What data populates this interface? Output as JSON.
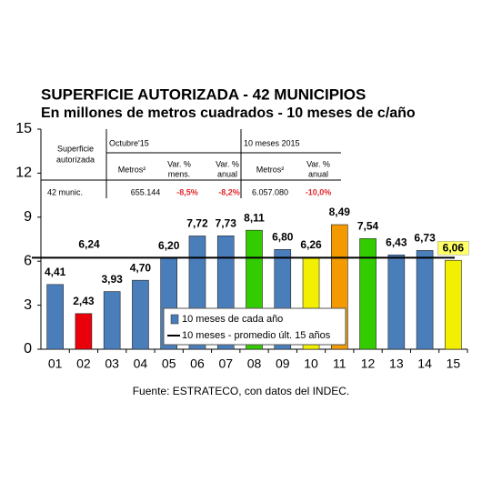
{
  "chart_data": {
    "type": "bar",
    "title": "SUPERFICIE AUTORIZADA - 42 MUNICIPIOS",
    "subtitle": "En millones de metros cuadrados - 10 meses de c/año",
    "source": "Fuente: ESTRATECO, con datos del INDEC.",
    "categories": [
      "01",
      "02",
      "03",
      "04",
      "05",
      "06",
      "07",
      "08",
      "09",
      "10",
      "11",
      "12",
      "13",
      "14",
      "15"
    ],
    "series": [
      {
        "name": "10 meses de cada año",
        "color": "#4a7ebb",
        "values": [
          4.41,
          2.43,
          3.93,
          4.7,
          6.2,
          7.72,
          7.73,
          8.11,
          6.8,
          6.26,
          8.49,
          7.54,
          6.43,
          6.73,
          6.06
        ],
        "value_labels": [
          "4,41",
          "2,43",
          "3,93",
          "4,70",
          "6,20",
          "7,72",
          "7,73",
          "8,11",
          "6,80",
          "6,26",
          "8,49",
          "7,54",
          "6,43",
          "6,73",
          "6,06"
        ],
        "colors": [
          "#4a7ebb",
          "#e8000b",
          "#4a7ebb",
          "#4a7ebb",
          "#4a7ebb",
          "#4a7ebb",
          "#4a7ebb",
          "#33cc00",
          "#4a7ebb",
          "#f2f000",
          "#f29a00",
          "#33cc00",
          "#4a7ebb",
          "#4a7ebb",
          "#f2f000"
        ]
      }
    ],
    "average": {
      "name": "10 meses - promedio últ. 15 años",
      "value": 6.24,
      "value_label": "6,24",
      "color": "#000000"
    },
    "ylim": [
      0,
      15
    ],
    "yticks": [
      0,
      3,
      6,
      9,
      12,
      15
    ],
    "grid": false,
    "table": {
      "stub": [
        "Superficie",
        "autorizada"
      ],
      "groups": [
        "Octubre'15",
        "10 meses 2015"
      ],
      "columns": [
        [
          "Metros²"
        ],
        [
          "Var. %",
          "mens."
        ],
        [
          "Var. %",
          "anual"
        ],
        [
          "Metros²"
        ],
        [
          "Var. %",
          "anual"
        ]
      ],
      "rows": [
        [
          "42 munic.",
          "655.144",
          "-8,5%",
          "-8,2%",
          "6.057.080",
          "-10,0%"
        ]
      ]
    }
  }
}
